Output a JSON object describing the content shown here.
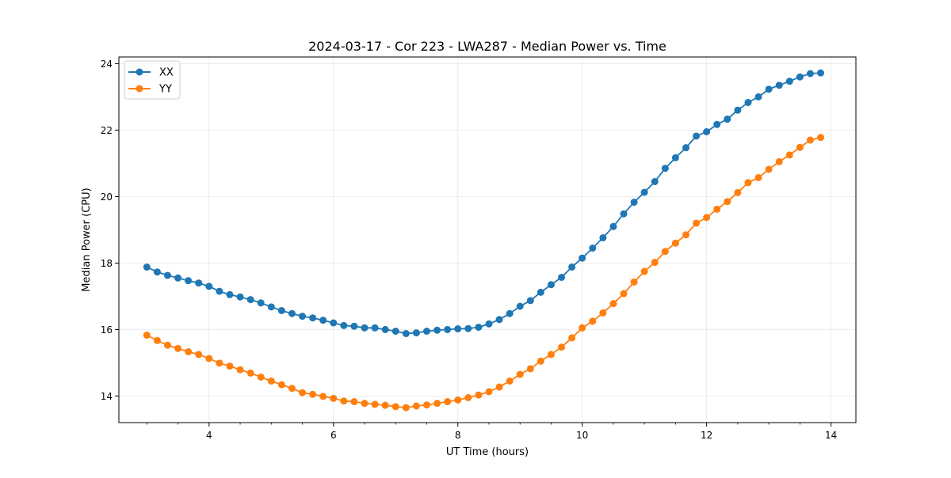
{
  "chart_data": {
    "type": "line",
    "title": "2024-03-17 - Cor 223 - LWA287 - Median Power vs. Time",
    "xlabel": "UT Time (hours)",
    "ylabel": "Median Power (CPU)",
    "xlim": [
      2.55,
      14.4
    ],
    "ylim": [
      13.2,
      24.2
    ],
    "xticks": [
      4,
      6,
      8,
      10,
      12,
      14
    ],
    "xtick_labels": [
      "4",
      "6",
      "8",
      "10",
      "12",
      "14"
    ],
    "yticks": [
      14,
      16,
      18,
      20,
      22,
      24
    ],
    "ytick_labels": [
      "14",
      "16",
      "18",
      "20",
      "22",
      "24"
    ],
    "grid": true,
    "legend_position": "top-left",
    "series": [
      {
        "name": "XX",
        "color": "#1f77b4",
        "x": [
          3.0,
          3.1667,
          3.3333,
          3.5,
          3.6667,
          3.8333,
          4.0,
          4.1667,
          4.3333,
          4.5,
          4.6667,
          4.8333,
          5.0,
          5.1667,
          5.3333,
          5.5,
          5.6667,
          5.8333,
          6.0,
          6.1667,
          6.3333,
          6.5,
          6.6667,
          6.8333,
          7.0,
          7.1667,
          7.3333,
          7.5,
          7.6667,
          7.8333,
          8.0,
          8.1667,
          8.3333,
          8.5,
          8.6667,
          8.8333,
          9.0,
          9.1667,
          9.3333,
          9.5,
          9.6667,
          9.8333,
          10.0,
          10.1667,
          10.3333,
          10.5,
          10.6667,
          10.8333,
          11.0,
          11.1667,
          11.3333,
          11.5,
          11.6667,
          11.8333,
          12.0,
          12.1667,
          12.3333,
          12.5,
          12.6667,
          12.8333,
          13.0,
          13.1667,
          13.3333,
          13.5,
          13.6667,
          13.8333
        ],
        "values": [
          17.88,
          17.73,
          17.63,
          17.55,
          17.47,
          17.4,
          17.3,
          17.15,
          17.05,
          16.98,
          16.9,
          16.8,
          16.68,
          16.57,
          16.48,
          16.4,
          16.35,
          16.28,
          16.2,
          16.12,
          16.1,
          16.05,
          16.05,
          16.0,
          15.95,
          15.88,
          15.9,
          15.95,
          15.98,
          16.0,
          16.02,
          16.03,
          16.07,
          16.17,
          16.3,
          16.48,
          16.7,
          16.87,
          17.12,
          17.35,
          17.57,
          17.88,
          18.15,
          18.45,
          18.76,
          19.1,
          19.48,
          19.83,
          20.13,
          20.45,
          20.85,
          21.17,
          21.47,
          21.82,
          21.95,
          22.17,
          22.33,
          22.6,
          22.83,
          23.0,
          23.23,
          23.35,
          23.47,
          23.6,
          23.7,
          23.72
        ]
      },
      {
        "name": "YY",
        "color": "#ff7f0e",
        "x": [
          3.0,
          3.1667,
          3.3333,
          3.5,
          3.6667,
          3.8333,
          4.0,
          4.1667,
          4.3333,
          4.5,
          4.6667,
          4.8333,
          5.0,
          5.1667,
          5.3333,
          5.5,
          5.6667,
          5.8333,
          6.0,
          6.1667,
          6.3333,
          6.5,
          6.6667,
          6.8333,
          7.0,
          7.1667,
          7.3333,
          7.5,
          7.6667,
          7.8333,
          8.0,
          8.1667,
          8.3333,
          8.5,
          8.6667,
          8.8333,
          9.0,
          9.1667,
          9.3333,
          9.5,
          9.6667,
          9.8333,
          10.0,
          10.1667,
          10.3333,
          10.5,
          10.6667,
          10.8333,
          11.0,
          11.1667,
          11.3333,
          11.5,
          11.6667,
          11.8333,
          12.0,
          12.1667,
          12.3333,
          12.5,
          12.6667,
          12.8333,
          13.0,
          13.1667,
          13.3333,
          13.5,
          13.6667,
          13.8333
        ],
        "values": [
          15.83,
          15.67,
          15.53,
          15.43,
          15.33,
          15.25,
          15.13,
          14.99,
          14.9,
          14.79,
          14.69,
          14.57,
          14.45,
          14.34,
          14.23,
          14.1,
          14.05,
          13.99,
          13.93,
          13.85,
          13.83,
          13.78,
          13.75,
          13.72,
          13.68,
          13.65,
          13.7,
          13.73,
          13.78,
          13.83,
          13.88,
          13.95,
          14.03,
          14.13,
          14.27,
          14.45,
          14.65,
          14.82,
          15.05,
          15.25,
          15.47,
          15.75,
          16.05,
          16.25,
          16.5,
          16.78,
          17.08,
          17.43,
          17.75,
          18.02,
          18.35,
          18.6,
          18.85,
          19.2,
          19.37,
          19.62,
          19.85,
          20.12,
          20.42,
          20.57,
          20.82,
          21.05,
          21.25,
          21.48,
          21.7,
          21.78
        ]
      }
    ]
  }
}
